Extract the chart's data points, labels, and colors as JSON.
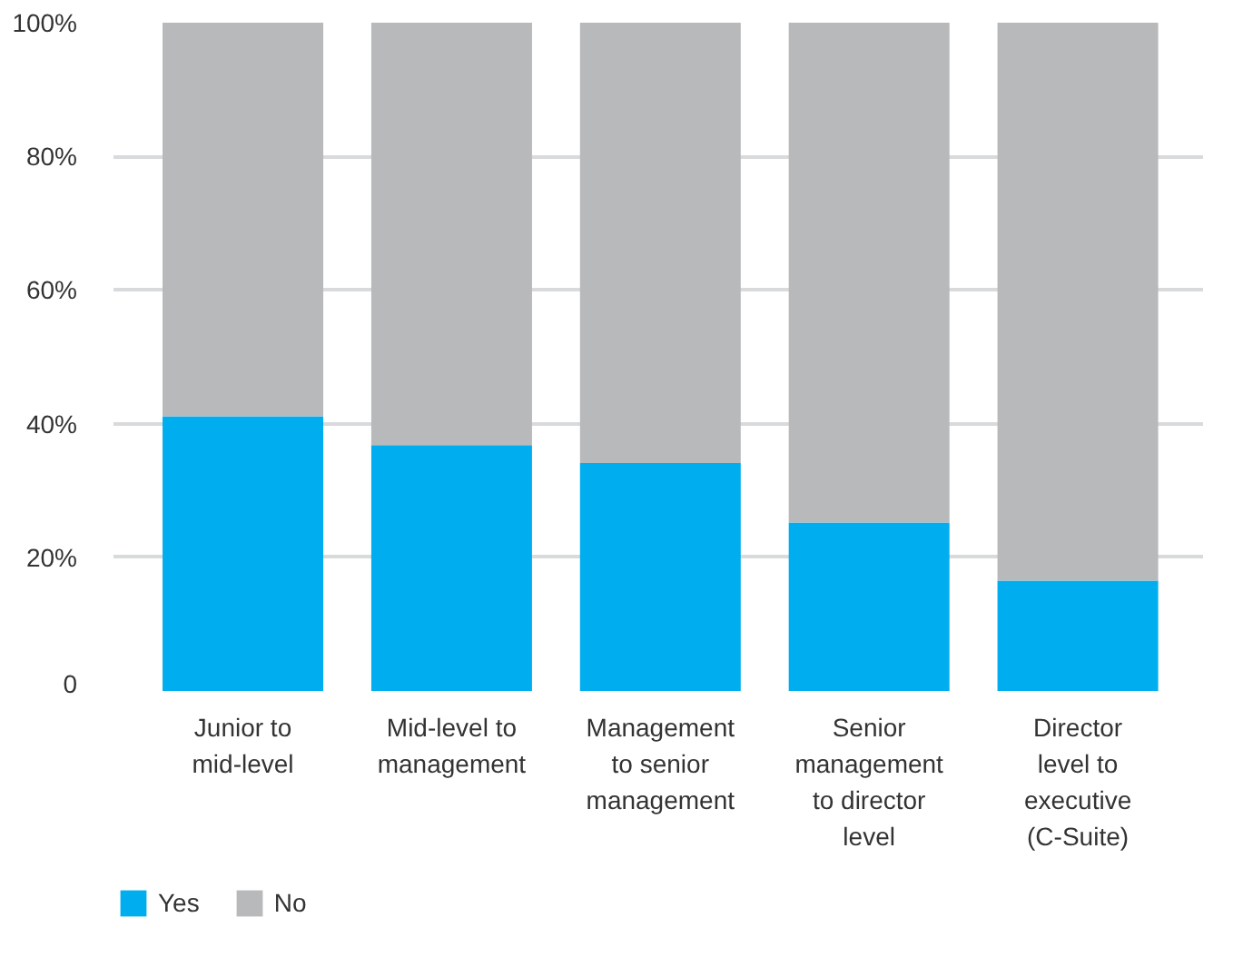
{
  "chart_data": {
    "type": "bar",
    "stacked": true,
    "categories": [
      "Junior to mid-level",
      "Mid-level to management",
      "Management to senior management",
      "Senior management to director level",
      "Director level to executive (C-Suite)"
    ],
    "series": [
      {
        "name": "Yes",
        "color": "#00aeef",
        "values": [
          41.1,
          36.8,
          34.1,
          25.2,
          16.5
        ]
      },
      {
        "name": "No",
        "color": "#b8b9bb",
        "values": [
          58.9,
          63.2,
          65.9,
          74.8,
          83.5
        ]
      }
    ],
    "ylim": [
      0,
      100
    ],
    "yticks": [
      0,
      {
        "value": 20,
        "label": "20%"
      },
      {
        "value": 40,
        "label": "40%"
      },
      {
        "value": 60,
        "label": "60%"
      },
      {
        "value": 80,
        "label": "80%"
      },
      {
        "value": 100,
        "label": "100%"
      }
    ],
    "grid": "y",
    "legend": "bottom left"
  }
}
